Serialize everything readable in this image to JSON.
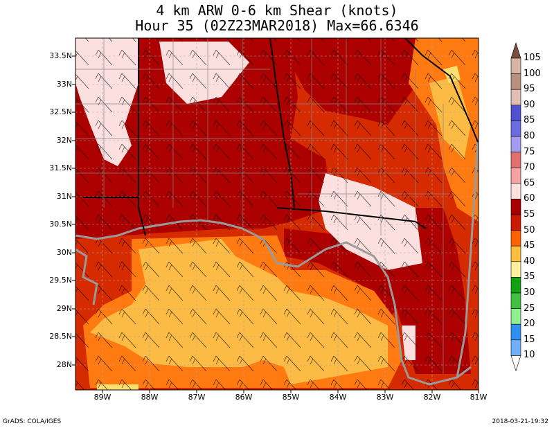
{
  "title_line1": "4 km ARW 0-6 km Shear (knots)",
  "title_line2": "Hour 35 (02Z23MAR2018) Max=66.6346",
  "footer_left": "GrADS: COLA/IGES",
  "footer_right": "2018-03-21-19:32",
  "lat_labels": [
    "33.5N",
    "33N",
    "32.5N",
    "32N",
    "31.5N",
    "31N",
    "30.5N",
    "30N",
    "29.5N",
    "29N",
    "28.5N",
    "28N"
  ],
  "lon_labels": [
    "89W",
    "88W",
    "87W",
    "86W",
    "85W",
    "84W",
    "83W",
    "82W",
    "81W"
  ],
  "colorbar": {
    "levels": [
      "105",
      "100",
      "95",
      "90",
      "85",
      "80",
      "75",
      "70",
      "65",
      "60",
      "55",
      "50",
      "45",
      "40",
      "35",
      "30",
      "25",
      "20",
      "15",
      "10"
    ],
    "colors": [
      "#d6b5a3",
      "#b98f7f",
      "#e1bdb3",
      "#5050d0",
      "#6b6be0",
      "#a59bf0",
      "#e07070",
      "#f4a3a3",
      "#fce0e0",
      "#a80000",
      "#cc1a00",
      "#ff6000",
      "#fbc040",
      "#fef0a0",
      "#10a010",
      "#40c040",
      "#90f090",
      "#3090f0",
      "#70b0f8",
      "#a6c8fc"
    ],
    "cap_top_color": "#7a4e3c"
  },
  "shading_colors": {
    "c50_55": "#d62a00",
    "c55_60": "#ad0000",
    "c60_65": "#fce0e0",
    "c45_50": "#ff7a10",
    "c40_45": "#fbbb44",
    "c35_40": "#fbe070",
    "c65_plus": "#f7a0a0"
  }
}
